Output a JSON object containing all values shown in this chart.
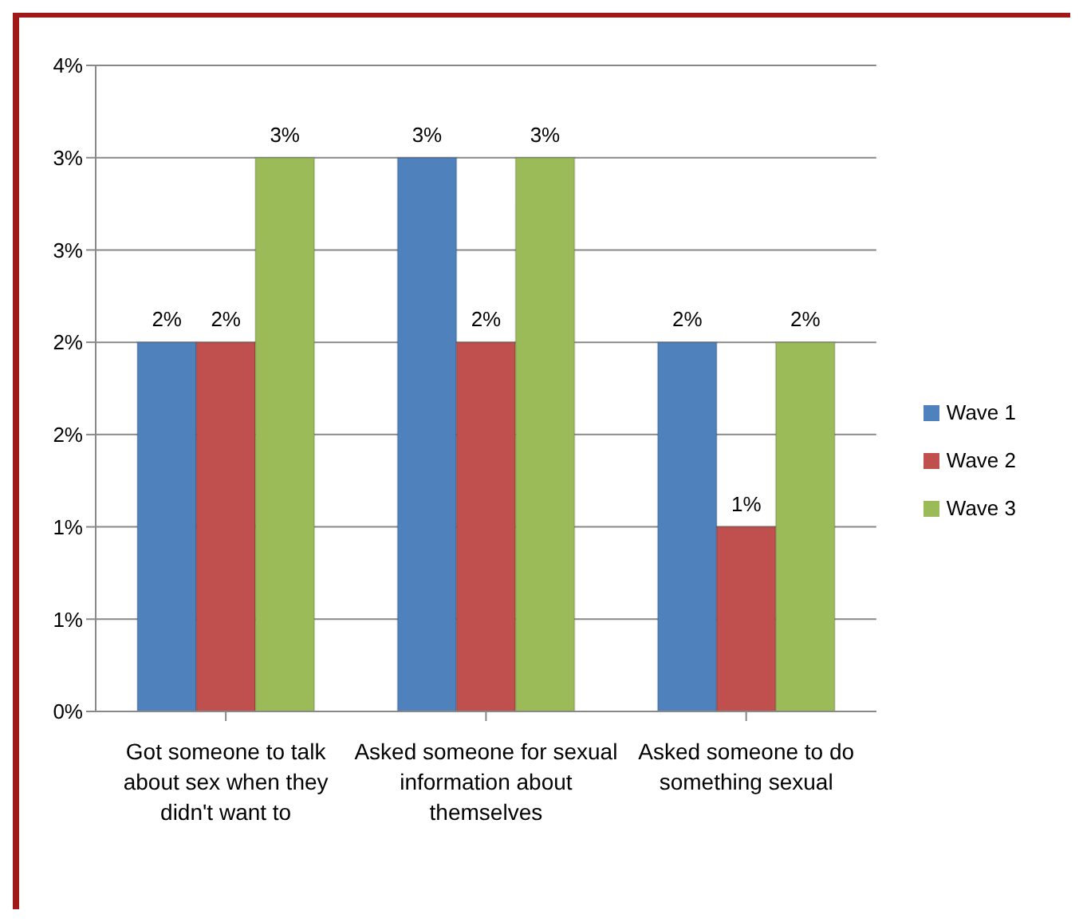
{
  "chart_data": {
    "type": "bar",
    "categories": [
      "Got someone to talk about sex when they didn't want to",
      "Asked someone for sexual information about themselves",
      "Asked someone to do something sexual"
    ],
    "series": [
      {
        "name": "Wave 1",
        "color": "#4f81bd",
        "values": [
          2,
          3,
          2
        ],
        "value_labels": [
          "2%",
          "3%",
          "2%"
        ]
      },
      {
        "name": "Wave 2",
        "color": "#c0504d",
        "values": [
          2,
          2,
          1
        ],
        "value_labels": [
          "2%",
          "2%",
          "1%"
        ]
      },
      {
        "name": "Wave 3",
        "color": "#9bbb59",
        "values": [
          3,
          3,
          2
        ],
        "value_labels": [
          "3%",
          "3%",
          "2%"
        ]
      }
    ],
    "ylim": [
      0,
      3.5
    ],
    "yticks": [
      {
        "value": 0,
        "label": "0%"
      },
      {
        "value": 0.5,
        "label": "1%"
      },
      {
        "value": 1,
        "label": "1%"
      },
      {
        "value": 1.5,
        "label": "2%"
      },
      {
        "value": 2,
        "label": "2%"
      },
      {
        "value": 2.5,
        "label": "3%"
      },
      {
        "value": 3,
        "label": "3%"
      },
      {
        "value": 3.5,
        "label": "4%"
      }
    ],
    "grid": "y",
    "legend": "right"
  }
}
